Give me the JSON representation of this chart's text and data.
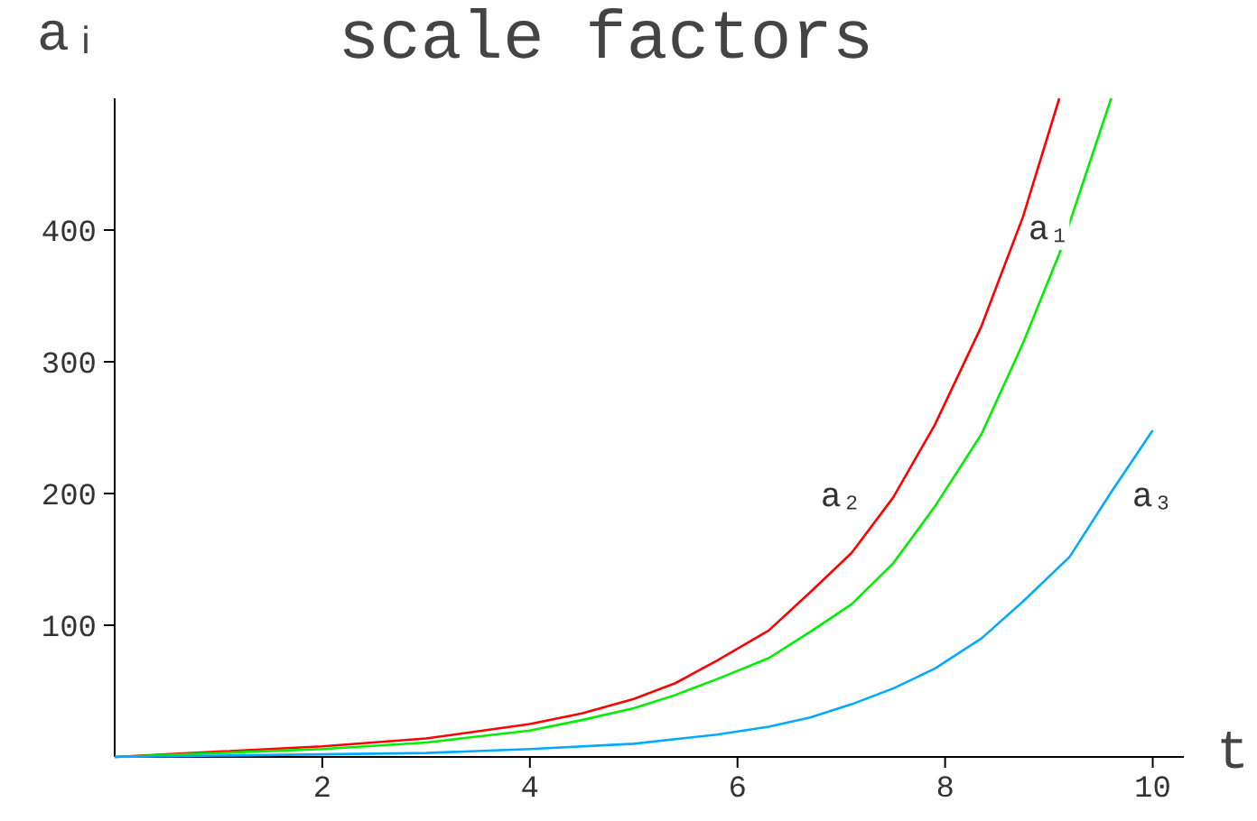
{
  "chart_data": {
    "type": "line",
    "title": "scale factors",
    "xlabel": "t",
    "ylabel": "aᵢ",
    "x": [
      0,
      1,
      2,
      3,
      4,
      4.5,
      5,
      5.4,
      5.8,
      6.3,
      6.7,
      7.1,
      7.5,
      7.9,
      8.35,
      8.75,
      9.1,
      9.2,
      9.6,
      10
    ],
    "series": [
      {
        "color": "#ff0000",
        "values": [
          0,
          4,
          8,
          14,
          25,
          33,
          44,
          56,
          73,
          96,
          125,
          155,
          197,
          252,
          327,
          410,
          500,
          null,
          null,
          null
        ]
      },
      {
        "color": "#00ee00",
        "values": [
          0,
          3,
          6,
          11,
          20,
          28,
          37,
          47,
          59,
          75,
          95,
          116,
          147,
          190,
          245,
          314,
          382,
          null,
          500,
          null
        ]
      },
      {
        "color": "#00aaff",
        "values": [
          0,
          1,
          2,
          3,
          6,
          null,
          10,
          null,
          17,
          23,
          30,
          40,
          52,
          67,
          90,
          118,
          null,
          152,
          201,
          248
        ]
      }
    ],
    "annotations": [
      {
        "text": "a₁",
        "x": 9.0,
        "y": 400
      },
      {
        "text": "a₂",
        "x": 7.0,
        "y": 197
      },
      {
        "text": "a₃",
        "x": 10.0,
        "y": 197
      }
    ],
    "xlim": [
      0,
      10.3
    ],
    "ylim": [
      0,
      500
    ],
    "xticks": [
      2,
      4,
      6,
      8,
      10
    ],
    "yticks": [
      100,
      200,
      300,
      400
    ],
    "grid": false,
    "marker": "none",
    "line_style": "solid"
  }
}
